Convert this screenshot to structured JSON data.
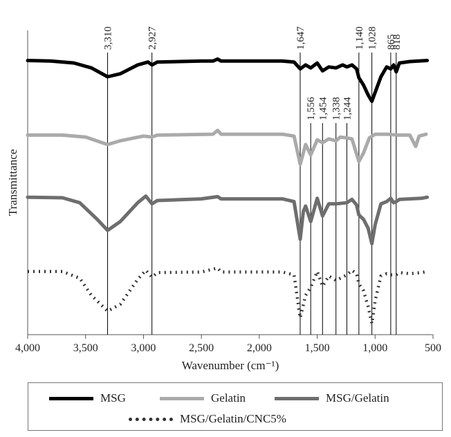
{
  "chart_data": {
    "type": "line",
    "title": "",
    "xlabel": "Wavenumber (cm⁻¹)",
    "ylabel": "Transmittance",
    "xlim": [
      4000,
      500
    ],
    "x_ticks": [
      4000,
      3500,
      3000,
      2500,
      2000,
      1500,
      1000,
      500
    ],
    "x_tick_labels": [
      "4,000",
      "3,500",
      "3,000",
      "2,500",
      "2,000",
      "1,500",
      "1,000",
      "500"
    ],
    "y_ticks": false,
    "grid": false,
    "legend_position": "bottom",
    "annotated_peaks": [
      {
        "x": 3310,
        "label": "3,310"
      },
      {
        "x": 2927,
        "label": "2,927"
      },
      {
        "x": 1647,
        "label": "1,647"
      },
      {
        "x": 1556,
        "label": "1,556"
      },
      {
        "x": 1454,
        "label": "1,454"
      },
      {
        "x": 1338,
        "label": "1,338"
      },
      {
        "x": 1244,
        "label": "1,244"
      },
      {
        "x": 1140,
        "label": "1,140"
      },
      {
        "x": 1028,
        "label": "1,028"
      },
      {
        "x": 865,
        "label": "865"
      },
      {
        "x": 818,
        "label": "818"
      }
    ],
    "series": [
      {
        "name": "MSG",
        "color": "#000000",
        "style": "solid",
        "points": [
          [
            4000,
            0.95
          ],
          [
            3800,
            0.94
          ],
          [
            3600,
            0.9
          ],
          [
            3450,
            0.8
          ],
          [
            3310,
            0.62
          ],
          [
            3200,
            0.68
          ],
          [
            3050,
            0.86
          ],
          [
            2960,
            0.92
          ],
          [
            2927,
            0.86
          ],
          [
            2880,
            0.92
          ],
          [
            2500,
            0.94
          ],
          [
            2400,
            0.94
          ],
          [
            2360,
            0.98
          ],
          [
            2330,
            0.94
          ],
          [
            1800,
            0.94
          ],
          [
            1700,
            0.92
          ],
          [
            1647,
            0.78
          ],
          [
            1600,
            0.86
          ],
          [
            1556,
            0.8
          ],
          [
            1500,
            0.9
          ],
          [
            1454,
            0.74
          ],
          [
            1400,
            0.82
          ],
          [
            1338,
            0.8
          ],
          [
            1280,
            0.86
          ],
          [
            1244,
            0.82
          ],
          [
            1200,
            0.86
          ],
          [
            1160,
            0.78
          ],
          [
            1140,
            0.6
          ],
          [
            1100,
            0.45
          ],
          [
            1060,
            0.25
          ],
          [
            1028,
            0.12
          ],
          [
            1000,
            0.3
          ],
          [
            950,
            0.62
          ],
          [
            900,
            0.82
          ],
          [
            865,
            0.78
          ],
          [
            840,
            0.86
          ],
          [
            818,
            0.72
          ],
          [
            790,
            0.9
          ],
          [
            700,
            0.93
          ],
          [
            550,
            0.95
          ]
        ]
      },
      {
        "name": "Gelatin",
        "color": "#aaaaaa",
        "style": "solid",
        "points": [
          [
            4000,
            0.92
          ],
          [
            3700,
            0.92
          ],
          [
            3500,
            0.88
          ],
          [
            3310,
            0.72
          ],
          [
            3200,
            0.8
          ],
          [
            3000,
            0.9
          ],
          [
            2927,
            0.88
          ],
          [
            2880,
            0.92
          ],
          [
            2400,
            0.94
          ],
          [
            2360,
            1.02
          ],
          [
            2330,
            0.94
          ],
          [
            1800,
            0.94
          ],
          [
            1700,
            0.9
          ],
          [
            1647,
            0.3
          ],
          [
            1600,
            0.72
          ],
          [
            1556,
            0.5
          ],
          [
            1500,
            0.82
          ],
          [
            1454,
            0.76
          ],
          [
            1400,
            0.84
          ],
          [
            1338,
            0.8
          ],
          [
            1300,
            0.88
          ],
          [
            1244,
            0.86
          ],
          [
            1200,
            0.84
          ],
          [
            1140,
            0.36
          ],
          [
            1100,
            0.54
          ],
          [
            1050,
            0.86
          ],
          [
            1000,
            0.94
          ],
          [
            900,
            0.94
          ],
          [
            800,
            0.92
          ],
          [
            700,
            0.92
          ],
          [
            650,
            0.68
          ],
          [
            620,
            0.9
          ],
          [
            560,
            0.94
          ]
        ]
      },
      {
        "name": "MSG/Gelatin",
        "color": "#6e6e6e",
        "style": "solid",
        "points": [
          [
            4000,
            0.96
          ],
          [
            3700,
            0.95
          ],
          [
            3550,
            0.86
          ],
          [
            3400,
            0.56
          ],
          [
            3310,
            0.36
          ],
          [
            3200,
            0.52
          ],
          [
            3050,
            0.86
          ],
          [
            2980,
            0.98
          ],
          [
            2927,
            0.84
          ],
          [
            2880,
            0.9
          ],
          [
            2500,
            0.93
          ],
          [
            2360,
            0.97
          ],
          [
            2330,
            0.93
          ],
          [
            1800,
            0.93
          ],
          [
            1700,
            0.88
          ],
          [
            1647,
            0.2
          ],
          [
            1620,
            0.7
          ],
          [
            1600,
            0.8
          ],
          [
            1556,
            0.52
          ],
          [
            1500,
            0.94
          ],
          [
            1454,
            0.62
          ],
          [
            1400,
            0.84
          ],
          [
            1338,
            0.84
          ],
          [
            1244,
            0.86
          ],
          [
            1200,
            0.92
          ],
          [
            1160,
            0.82
          ],
          [
            1140,
            0.64
          ],
          [
            1100,
            0.56
          ],
          [
            1060,
            0.4
          ],
          [
            1028,
            0.12
          ],
          [
            1000,
            0.46
          ],
          [
            950,
            0.84
          ],
          [
            900,
            0.88
          ],
          [
            865,
            0.94
          ],
          [
            840,
            0.86
          ],
          [
            818,
            0.88
          ],
          [
            790,
            0.92
          ],
          [
            700,
            0.93
          ],
          [
            600,
            0.94
          ],
          [
            550,
            0.96
          ]
        ]
      },
      {
        "name": "MSG/Gelatin/CNC5%",
        "color": "#333333",
        "style": "dotted",
        "points": [
          [
            4000,
            0.92
          ],
          [
            3700,
            0.92
          ],
          [
            3550,
            0.8
          ],
          [
            3450,
            0.5
          ],
          [
            3310,
            0.22
          ],
          [
            3200,
            0.34
          ],
          [
            3050,
            0.78
          ],
          [
            2980,
            0.94
          ],
          [
            2927,
            0.82
          ],
          [
            2880,
            0.9
          ],
          [
            2500,
            0.91
          ],
          [
            2360,
            0.98
          ],
          [
            2330,
            0.91
          ],
          [
            1800,
            0.91
          ],
          [
            1700,
            0.86
          ],
          [
            1647,
            0.1
          ],
          [
            1600,
            0.5
          ],
          [
            1556,
            0.64
          ],
          [
            1500,
            0.92
          ],
          [
            1454,
            0.66
          ],
          [
            1400,
            0.84
          ],
          [
            1338,
            0.76
          ],
          [
            1244,
            0.86
          ],
          [
            1200,
            0.94
          ],
          [
            1160,
            0.88
          ],
          [
            1140,
            0.7
          ],
          [
            1100,
            0.58
          ],
          [
            1060,
            0.3
          ],
          [
            1028,
            0.0
          ],
          [
            1000,
            0.4
          ],
          [
            950,
            0.84
          ],
          [
            900,
            0.88
          ],
          [
            865,
            0.86
          ],
          [
            818,
            0.86
          ],
          [
            790,
            0.9
          ],
          [
            700,
            0.88
          ],
          [
            600,
            0.9
          ],
          [
            550,
            0.92
          ]
        ]
      }
    ]
  }
}
